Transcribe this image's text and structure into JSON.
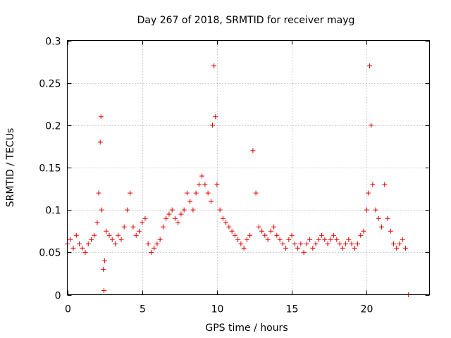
{
  "chart_data": {
    "type": "scatter",
    "title": "Day 267 of 2018, SRMTID for receiver mayg",
    "xlabel": "GPS time / hours",
    "ylabel": "SRMTID / TECUs",
    "xlim": [
      0,
      24.2
    ],
    "ylim": [
      0,
      0.3
    ],
    "x_ticks": [
      0,
      5,
      10,
      15,
      20
    ],
    "x_tick_labels": [
      "0",
      "5",
      "10",
      "15",
      "20"
    ],
    "y_ticks": [
      0,
      0.05,
      0.1,
      0.15,
      0.2,
      0.25,
      0.3
    ],
    "y_tick_labels": [
      "0",
      "0.05",
      "0.1",
      "0.15",
      "0.2",
      "0.25",
      "0.3"
    ],
    "grid": true,
    "marker": "+",
    "series": [
      {
        "name": "SRMTID",
        "color": "#e00000",
        "x": [
          0.0,
          0.2,
          0.4,
          0.6,
          0.8,
          1.0,
          1.2,
          1.4,
          1.6,
          1.8,
          2.0,
          2.1,
          2.2,
          2.25,
          2.3,
          2.4,
          2.45,
          2.5,
          2.6,
          2.8,
          3.0,
          3.2,
          3.4,
          3.6,
          3.8,
          4.0,
          4.2,
          4.4,
          4.6,
          4.8,
          5.0,
          5.2,
          5.4,
          5.6,
          5.8,
          6.0,
          6.2,
          6.4,
          6.6,
          6.8,
          7.0,
          7.2,
          7.4,
          7.6,
          7.8,
          8.0,
          8.2,
          8.4,
          8.6,
          8.8,
          9.0,
          9.2,
          9.4,
          9.6,
          9.7,
          9.8,
          9.9,
          10.0,
          10.2,
          10.4,
          10.6,
          10.8,
          11.0,
          11.2,
          11.4,
          11.6,
          11.8,
          12.0,
          12.2,
          12.4,
          12.6,
          12.8,
          13.0,
          13.2,
          13.4,
          13.6,
          13.8,
          14.0,
          14.2,
          14.4,
          14.6,
          14.8,
          15.0,
          15.2,
          15.4,
          15.6,
          15.8,
          16.0,
          16.2,
          16.4,
          16.6,
          16.8,
          17.0,
          17.2,
          17.4,
          17.6,
          17.8,
          18.0,
          18.2,
          18.4,
          18.6,
          18.8,
          19.0,
          19.2,
          19.4,
          19.6,
          19.8,
          20.0,
          20.1,
          20.2,
          20.3,
          20.4,
          20.6,
          20.8,
          21.0,
          21.2,
          21.4,
          21.6,
          21.8,
          22.0,
          22.2,
          22.4,
          22.6,
          22.8
        ],
        "y": [
          0.06,
          0.065,
          0.055,
          0.07,
          0.06,
          0.055,
          0.05,
          0.06,
          0.065,
          0.07,
          0.085,
          0.12,
          0.18,
          0.21,
          0.1,
          0.03,
          0.005,
          0.04,
          0.075,
          0.07,
          0.065,
          0.06,
          0.07,
          0.065,
          0.08,
          0.1,
          0.12,
          0.08,
          0.07,
          0.075,
          0.085,
          0.09,
          0.06,
          0.05,
          0.055,
          0.06,
          0.065,
          0.08,
          0.09,
          0.095,
          0.1,
          0.09,
          0.085,
          0.095,
          0.1,
          0.12,
          0.11,
          0.1,
          0.12,
          0.13,
          0.14,
          0.13,
          0.12,
          0.11,
          0.2,
          0.27,
          0.21,
          0.13,
          0.1,
          0.09,
          0.085,
          0.08,
          0.075,
          0.07,
          0.065,
          0.06,
          0.055,
          0.065,
          0.07,
          0.17,
          0.12,
          0.08,
          0.075,
          0.07,
          0.065,
          0.075,
          0.08,
          0.07,
          0.065,
          0.06,
          0.055,
          0.065,
          0.07,
          0.06,
          0.055,
          0.06,
          0.05,
          0.06,
          0.065,
          0.055,
          0.06,
          0.065,
          0.07,
          0.065,
          0.06,
          0.065,
          0.07,
          0.065,
          0.06,
          0.055,
          0.06,
          0.065,
          0.06,
          0.055,
          0.06,
          0.07,
          0.075,
          0.1,
          0.12,
          0.27,
          0.2,
          0.13,
          0.1,
          0.09,
          0.08,
          0.13,
          0.09,
          0.075,
          0.06,
          0.055,
          0.06,
          0.065,
          0.055,
          0.0
        ]
      }
    ]
  }
}
